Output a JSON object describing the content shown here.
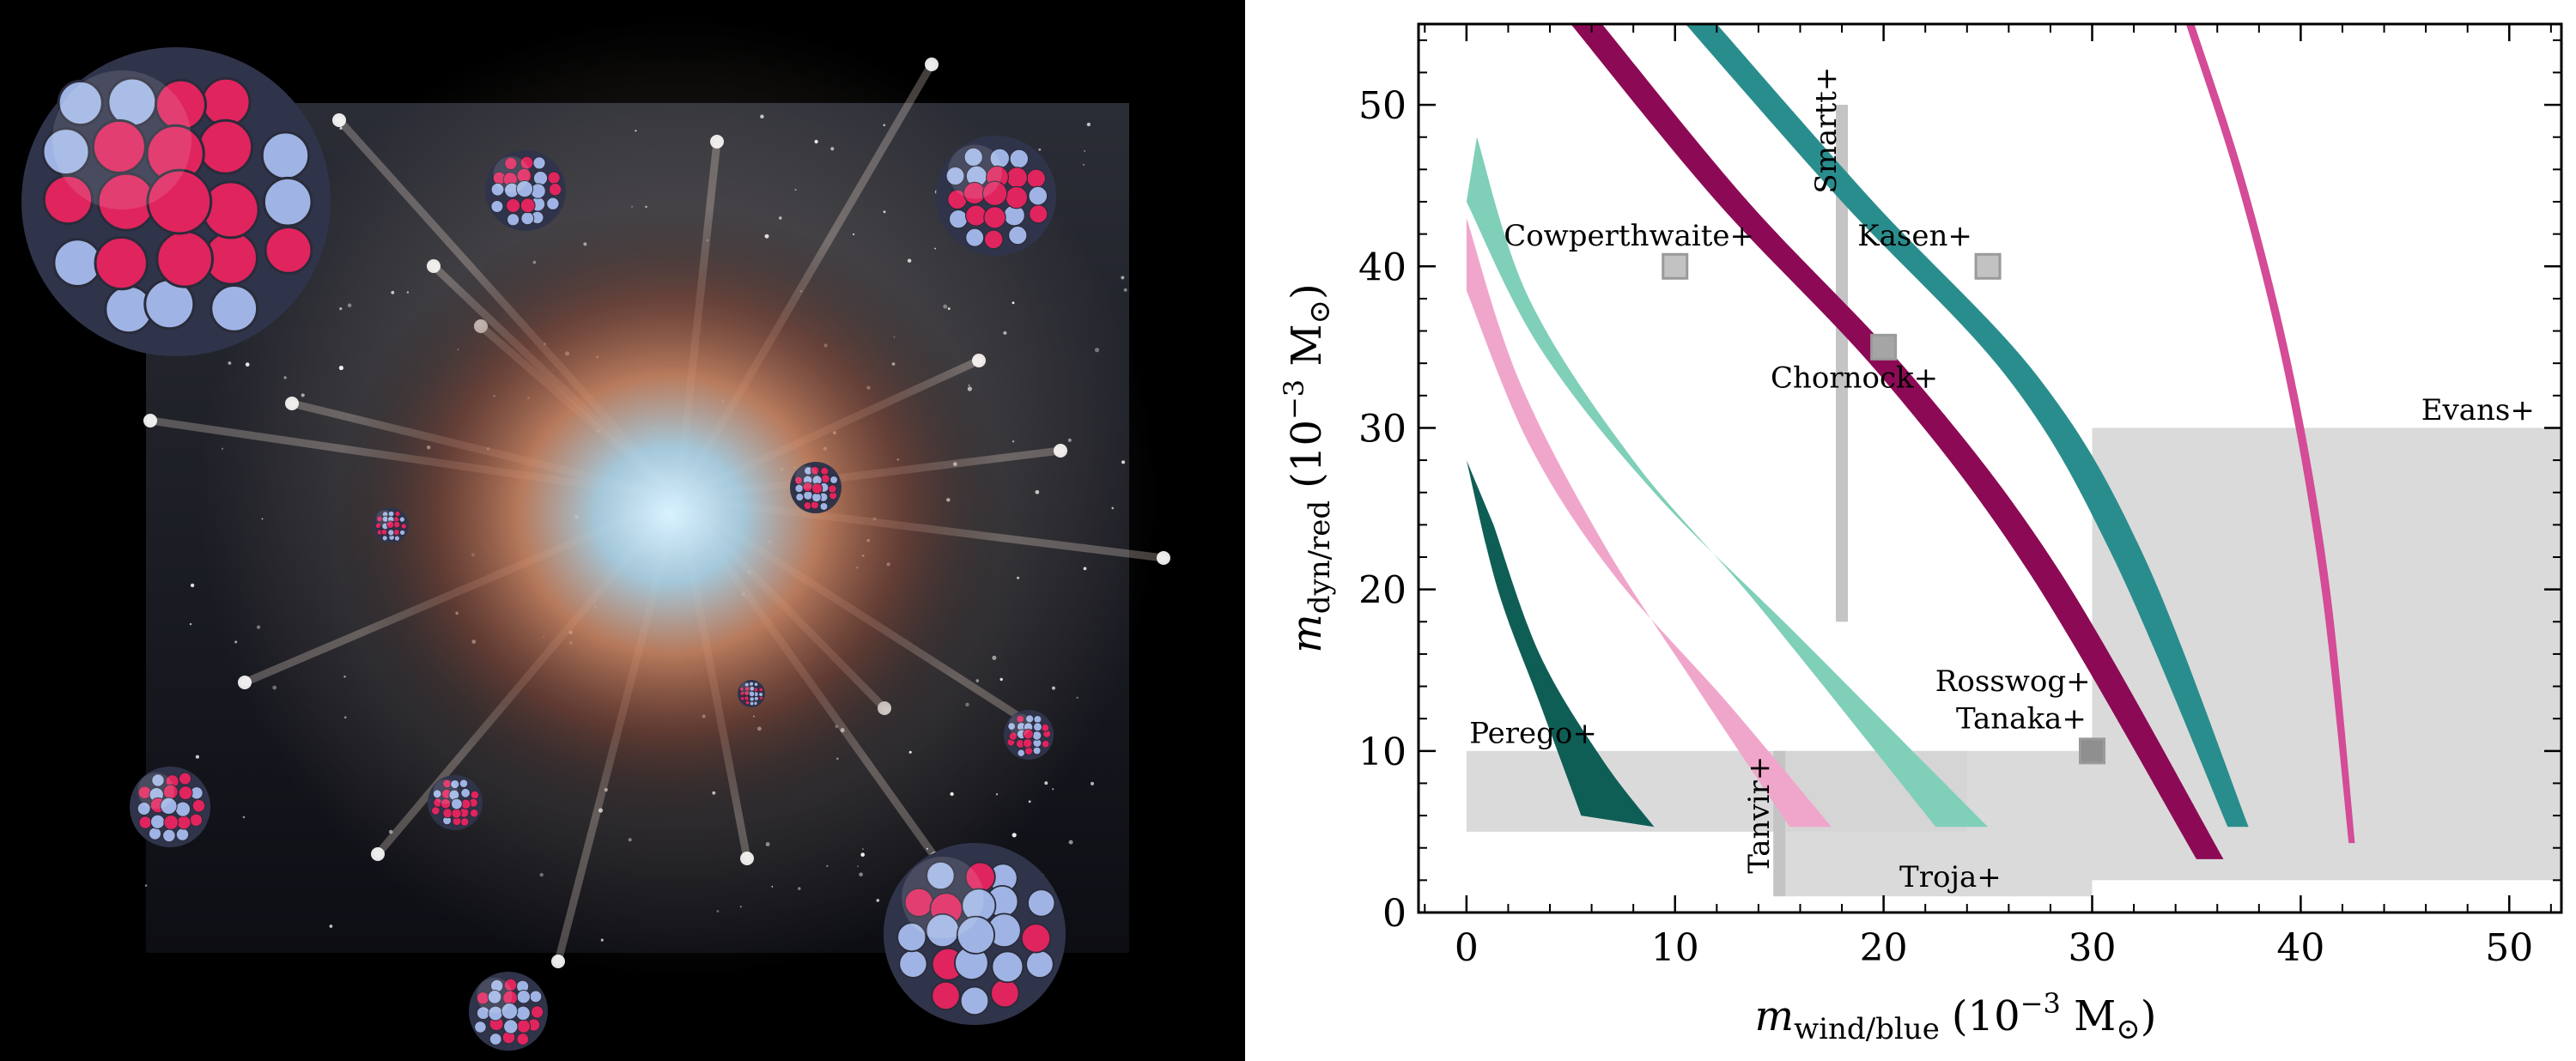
{
  "colors": {
    "dark_teal": "#0f5e55",
    "light_pink": "#f0a6cb",
    "mint": "#7fcfb9",
    "magenta_dark": "#8c0a55",
    "teal": "#2a8d8d",
    "pink": "#d44b97",
    "region_gray": "#d4d4d4",
    "marker_gray": "#bdbdbd",
    "art_background": "#000000",
    "nucleus_red": "#e0245e",
    "nucleus_blue": "#9fb4e4"
  },
  "chart_data": {
    "type": "line",
    "xlabel_main": "m",
    "xlabel_sub": "wind/blue",
    "xlabel_units": "(10",
    "xlabel_exp": "−3",
    "xlabel_end": " M",
    "ylabel_main": "m",
    "ylabel_sub": "dyn/red",
    "ylabel_units": "(10",
    "ylabel_exp": "−3",
    "ylabel_end": " M",
    "sun_symbol": "⊙",
    "xlim": [
      -2.3,
      52.5
    ],
    "ylim": [
      0,
      55
    ],
    "xticks": [
      0,
      10,
      20,
      30,
      40,
      50
    ],
    "yticks": [
      0,
      10,
      20,
      30,
      40,
      50
    ],
    "xtick_labels": [
      "0",
      "10",
      "20",
      "30",
      "40",
      "50"
    ],
    "ytick_labels": [
      "0",
      "10",
      "20",
      "30",
      "40",
      "50"
    ],
    "grid": false,
    "bands": [
      {
        "color": "dark_teal",
        "left": [
          [
            0,
            28
          ],
          [
            1.5,
            20
          ],
          [
            3.5,
            13
          ],
          [
            5.5,
            6
          ]
        ],
        "right": [
          [
            1.3,
            24
          ],
          [
            3.5,
            16
          ],
          [
            6.5,
            9.5
          ],
          [
            9,
            5.3
          ]
        ]
      },
      {
        "color": "light_pink",
        "left": [
          [
            0,
            43
          ],
          [
            2.5,
            33
          ],
          [
            6.5,
            23
          ],
          [
            11,
            14
          ],
          [
            15.5,
            5.3
          ]
        ],
        "right": [
          [
            0,
            38.5
          ],
          [
            3,
            29
          ],
          [
            7,
            21
          ],
          [
            12.5,
            13
          ],
          [
            17.5,
            5.3
          ]
        ]
      },
      {
        "color": "mint",
        "left": [
          [
            0.5,
            48
          ],
          [
            3,
            38
          ],
          [
            8,
            28
          ],
          [
            14,
            19
          ],
          [
            22.5,
            5.3
          ]
        ],
        "right": [
          [
            0,
            44
          ],
          [
            3.5,
            35
          ],
          [
            9,
            26
          ],
          [
            16,
            17
          ],
          [
            25,
            5.3
          ]
        ]
      },
      {
        "color": "magenta_dark",
        "left": [
          [
            5,
            55
          ],
          [
            12,
            44
          ],
          [
            20,
            33
          ],
          [
            27,
            21
          ],
          [
            35,
            3.3
          ]
        ],
        "right": [
          [
            6.5,
            55
          ],
          [
            13.5,
            44
          ],
          [
            21.5,
            33
          ],
          [
            28.5,
            21
          ],
          [
            36.3,
            3.3
          ]
        ]
      },
      {
        "color": "teal",
        "left": [
          [
            10.5,
            55
          ],
          [
            18,
            44
          ],
          [
            26,
            33
          ],
          [
            31,
            22
          ],
          [
            36.5,
            5.3
          ]
        ],
        "right": [
          [
            12,
            55
          ],
          [
            19.5,
            44
          ],
          [
            27.5,
            33
          ],
          [
            32.5,
            22
          ],
          [
            37.5,
            5.3
          ]
        ]
      },
      {
        "color": "pink",
        "left": [
          [
            34.5,
            55
          ],
          [
            37,
            45
          ],
          [
            39.3,
            33
          ],
          [
            41,
            20
          ],
          [
            42.3,
            4.3
          ]
        ],
        "right": [
          [
            34.9,
            55
          ],
          [
            37.4,
            45
          ],
          [
            39.7,
            33
          ],
          [
            41.4,
            20
          ],
          [
            42.6,
            4.3
          ]
        ]
      }
    ],
    "regions": [
      {
        "x0": 0,
        "x1": 24,
        "y0": 5,
        "y1": 10
      },
      {
        "x0": 15,
        "x1": 30,
        "y0": 1,
        "y1": 10
      },
      {
        "x0": 30,
        "x1": 52.5,
        "y0": 2,
        "y1": 30
      }
    ],
    "vertical_bars": [
      {
        "x": 18,
        "y0": 30,
        "y1": 50
      },
      {
        "x": 18,
        "y0": 18,
        "y1": 30
      },
      {
        "x": 15,
        "y0": 1,
        "y1": 10
      }
    ],
    "markers": [
      {
        "x": 10,
        "y": 40,
        "shade": "light"
      },
      {
        "x": 25,
        "y": 40,
        "shade": "light"
      },
      {
        "x": 20,
        "y": 35,
        "shade": "mid"
      },
      {
        "x": 30,
        "y": 10,
        "shade": "dark"
      }
    ],
    "annotations": [
      {
        "text": "Cowperthwaite+",
        "x": 13.8,
        "y": 41.3,
        "anchor": "end",
        "rotate": false
      },
      {
        "text": "Kasen+",
        "x": 21.5,
        "y": 41.3,
        "anchor": "middle",
        "rotate": false
      },
      {
        "text": "Smartt+",
        "x": 17.7,
        "y": 44.5,
        "anchor": "start",
        "rotate": true
      },
      {
        "text": "Chornock+",
        "x": 18.6,
        "y": 32.5,
        "anchor": "middle",
        "rotate": false
      },
      {
        "text": "Evans+",
        "x": 48.5,
        "y": 30.5,
        "anchor": "middle",
        "rotate": false
      },
      {
        "text": "Rosswog+",
        "x": 26.2,
        "y": 13.7,
        "anchor": "middle",
        "rotate": false
      },
      {
        "text": "Tanaka+",
        "x": 26.6,
        "y": 11.4,
        "anchor": "middle",
        "rotate": false
      },
      {
        "text": "Perego+",
        "x": 3.2,
        "y": 10.5,
        "anchor": "middle",
        "rotate": false
      },
      {
        "text": "Tanvir+",
        "x": 14.5,
        "y": 2.4,
        "anchor": "start",
        "rotate": true
      },
      {
        "text": "Troja+",
        "x": 23.2,
        "y": 1.6,
        "anchor": "middle",
        "rotate": false
      }
    ]
  }
}
